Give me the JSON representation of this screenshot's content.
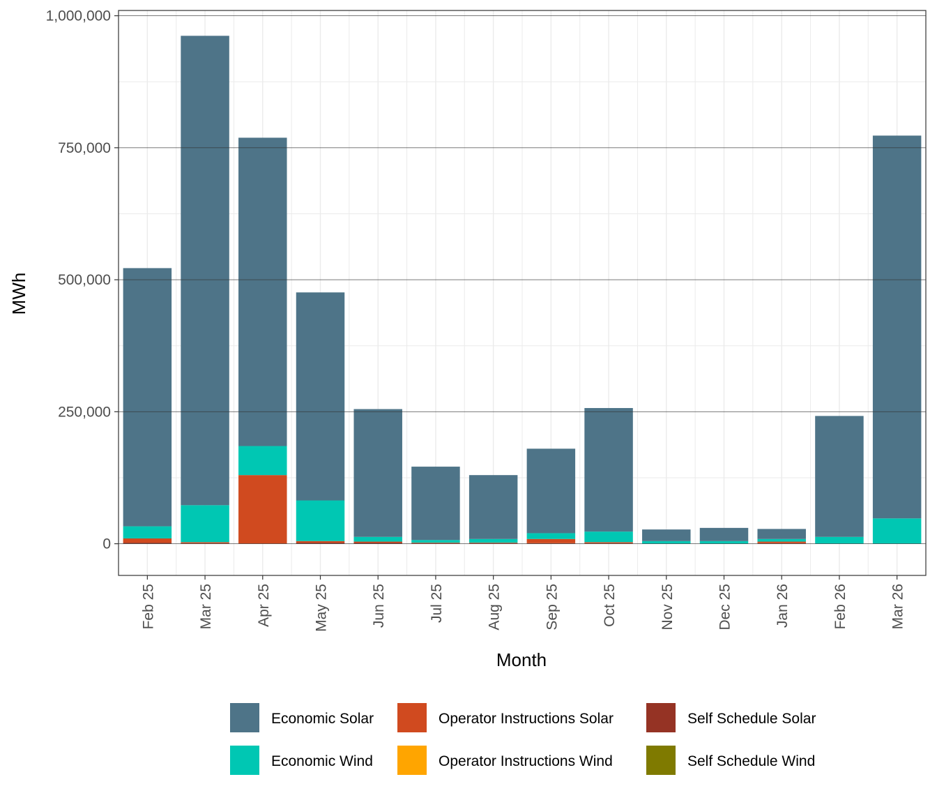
{
  "chart_data": {
    "type": "bar",
    "stacked": true,
    "title": "",
    "xlabel": "Month",
    "ylabel": "MWh",
    "ylim": [
      -60000,
      1010000
    ],
    "y_ticks": [
      0,
      250000,
      500000,
      750000,
      1000000
    ],
    "y_tick_labels": [
      "0",
      "250,000",
      "500,000",
      "750,000",
      "1,000,000"
    ],
    "grid": true,
    "legend_position": "bottom",
    "categories": [
      "Feb 25",
      "Mar 25",
      "Apr 25",
      "May 25",
      "Jun 25",
      "Jul 25",
      "Aug 25",
      "Sep 25",
      "Oct 25",
      "Nov 25",
      "Dec 25",
      "Jan 26",
      "Feb 26",
      "Mar 26"
    ],
    "series": [
      {
        "name": "Self Schedule Solar",
        "color": "#953324",
        "values": [
          2000,
          1000,
          0,
          2000,
          2000,
          1000,
          1000,
          1000,
          1000,
          0,
          0,
          1000,
          0,
          0
        ]
      },
      {
        "name": "Self Schedule Wind",
        "color": "#7f7a00",
        "values": [
          0,
          0,
          0,
          0,
          0,
          0,
          0,
          0,
          0,
          0,
          0,
          0,
          0,
          0
        ]
      },
      {
        "name": "Operator Instructions Solar",
        "color": "#d04a1f",
        "values": [
          8000,
          2000,
          130000,
          3000,
          2000,
          1000,
          1000,
          8000,
          2000,
          0,
          0,
          3000,
          0,
          0
        ]
      },
      {
        "name": "Operator Instructions Wind",
        "color": "#ffa500",
        "values": [
          0,
          0,
          0,
          0,
          0,
          0,
          0,
          0,
          0,
          0,
          0,
          0,
          0,
          0
        ]
      },
      {
        "name": "Economic Wind",
        "color": "#00c7b3",
        "values": [
          23000,
          70000,
          55000,
          77000,
          9000,
          5000,
          7000,
          11000,
          20000,
          5000,
          5000,
          5000,
          13000,
          48000
        ]
      },
      {
        "name": "Economic Solar",
        "color": "#4e7488",
        "values": [
          489000,
          889000,
          584000,
          394000,
          242000,
          139000,
          121000,
          160000,
          234000,
          22000,
          25000,
          19000,
          229000,
          725000
        ]
      }
    ],
    "legend_rows": [
      [
        "Economic Solar",
        "Operator Instructions Solar",
        "Self Schedule Solar"
      ],
      [
        "Economic Wind",
        "Operator Instructions Wind",
        "Self Schedule Wind"
      ]
    ]
  }
}
